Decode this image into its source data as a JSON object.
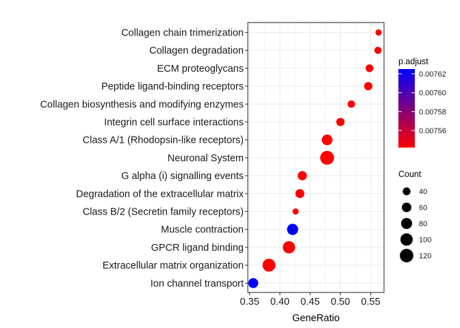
{
  "chart_data": {
    "type": "scatter",
    "xlabel": "GeneRatio",
    "ylabel": "",
    "xlim": [
      0.347,
      0.572
    ],
    "xticks": [
      0.35,
      0.4,
      0.45,
      0.5,
      0.55
    ],
    "xtick_labels": [
      "0.35",
      "0.40",
      "0.45",
      "0.50",
      "0.55"
    ],
    "grid": true,
    "legend_position": "right",
    "categories": [
      "Collagen chain trimerization",
      "Collagen degradation",
      "ECM proteoglycans",
      "Peptide ligand-binding receptors",
      "Collagen biosynthesis and modifying enzymes",
      "Integrin cell surface interactions",
      "Class A/1 (Rhodopsin-like receptors)",
      "Neuronal System",
      "G alpha (i) signalling events",
      "Degradation of the extracellular matrix",
      "Class B/2 (Secretin family receptors)",
      "Muscle contraction",
      "GPCR ligand binding",
      "Extracellular matrix organization",
      "Ion channel transport"
    ],
    "points": [
      {
        "term": "Collagen chain trimerization",
        "gene_ratio": 0.563,
        "count": 26,
        "p_adjust": 0.007542
      },
      {
        "term": "Collagen degradation",
        "gene_ratio": 0.562,
        "count": 34,
        "p_adjust": 0.007542
      },
      {
        "term": "ECM proteoglycans",
        "gene_ratio": 0.548,
        "count": 40,
        "p_adjust": 0.007542
      },
      {
        "term": "Peptide ligand-binding receptors",
        "gene_ratio": 0.546,
        "count": 45,
        "p_adjust": 0.007542
      },
      {
        "term": "Collagen biosynthesis and modifying enzymes",
        "gene_ratio": 0.518,
        "count": 36,
        "p_adjust": 0.007542
      },
      {
        "term": "Integrin cell surface interactions",
        "gene_ratio": 0.5,
        "count": 45,
        "p_adjust": 0.007542
      },
      {
        "term": "Class A/1 (Rhodopsin-like receptors)",
        "gene_ratio": 0.478,
        "count": 75,
        "p_adjust": 0.007542
      },
      {
        "term": "Neuronal System",
        "gene_ratio": 0.478,
        "count": 127,
        "p_adjust": 0.007542
      },
      {
        "term": "G alpha (i) signalling events",
        "gene_ratio": 0.437,
        "count": 55,
        "p_adjust": 0.007542
      },
      {
        "term": "Degradation of the extracellular matrix",
        "gene_ratio": 0.433,
        "count": 53,
        "p_adjust": 0.007542
      },
      {
        "term": "Class B/2 (Secretin family receptors)",
        "gene_ratio": 0.426,
        "count": 25,
        "p_adjust": 0.007542
      },
      {
        "term": "Muscle contraction",
        "gene_ratio": 0.421,
        "count": 82,
        "p_adjust": 0.007625
      },
      {
        "term": "GPCR ligand binding",
        "gene_ratio": 0.415,
        "count": 100,
        "p_adjust": 0.007542
      },
      {
        "term": "Extracellular matrix organization",
        "gene_ratio": 0.382,
        "count": 110,
        "p_adjust": 0.007542
      },
      {
        "term": "Ion channel transport",
        "gene_ratio": 0.356,
        "count": 65,
        "p_adjust": 0.007625
      }
    ],
    "color_legend": {
      "title": "p.adjust",
      "min": 0.007542,
      "max": 0.007625,
      "low_color": "#ff0000",
      "high_color": "#0000ff",
      "ticks": [
        0.00756,
        0.00758,
        0.0076,
        0.00762
      ],
      "tick_labels": [
        "0.00756",
        "0.00758",
        "0.00760",
        "0.00762"
      ]
    },
    "size_legend": {
      "title": "Count",
      "values": [
        40,
        60,
        80,
        100,
        120
      ],
      "labels": [
        "40",
        "60",
        "80",
        "100",
        "120"
      ]
    },
    "colors": {
      "panel_background": "#ffffff",
      "gridline": "#ebebeb",
      "panel_border": "#333333",
      "legend_point": "#000000"
    }
  }
}
